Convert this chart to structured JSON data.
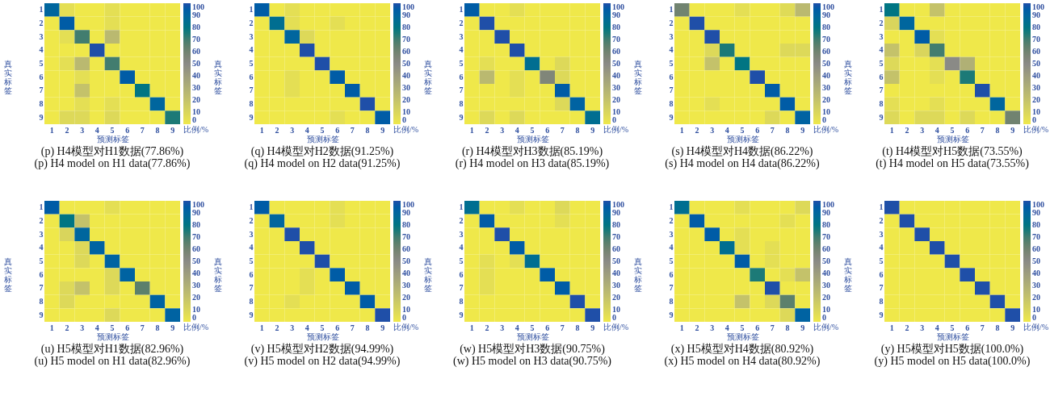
{
  "chart_data": [
    {
      "type": "heatmap",
      "title": "(p) H4模型对H1数据(77.86%)",
      "subtitle": "(p) H4 model on H1 data(77.86%)",
      "xlabel": "预测标签",
      "ylabel": "真实标签",
      "clabel": "比例/%",
      "categories": [
        "1",
        "2",
        "3",
        "4",
        "5",
        "6",
        "7",
        "8",
        "9"
      ],
      "y_categories": [
        "1",
        "2",
        "3",
        "4",
        "5",
        "6",
        "7",
        "8",
        "9"
      ],
      "clim": [
        0,
        100
      ],
      "cticks": [
        0,
        10,
        20,
        30,
        40,
        50,
        60,
        70,
        80,
        90,
        100
      ],
      "cells": [
        [
          90,
          5,
          0,
          0,
          5,
          0,
          0,
          0,
          0
        ],
        [
          0,
          95,
          0,
          0,
          5,
          0,
          0,
          0,
          0
        ],
        [
          0,
          5,
          70,
          0,
          25,
          0,
          0,
          0,
          0
        ],
        [
          0,
          0,
          0,
          100,
          0,
          0,
          0,
          0,
          0
        ],
        [
          0,
          5,
          25,
          0,
          70,
          0,
          0,
          0,
          0
        ],
        [
          0,
          0,
          5,
          0,
          0,
          95,
          0,
          0,
          0
        ],
        [
          0,
          0,
          20,
          0,
          0,
          0,
          80,
          0,
          0
        ],
        [
          0,
          0,
          5,
          0,
          5,
          0,
          0,
          90,
          0
        ],
        [
          0,
          8,
          8,
          0,
          8,
          0,
          0,
          0,
          75
        ]
      ]
    },
    {
      "type": "heatmap",
      "title": "(q) H4模型对H2数据(91.25%)",
      "subtitle": "(q) H4 model on H2 data(91.25%)",
      "xlabel": "预测标签",
      "ylabel": "真实标签",
      "clabel": "比例/%",
      "categories": [
        "1",
        "2",
        "3",
        "4",
        "5",
        "6",
        "7",
        "8",
        "9"
      ],
      "y_categories": [
        "1",
        "2",
        "3",
        "4",
        "5",
        "6",
        "7",
        "8",
        "9"
      ],
      "clim": [
        0,
        100
      ],
      "cticks": [
        0,
        10,
        20,
        30,
        40,
        50,
        60,
        70,
        80,
        90,
        100
      ],
      "cells": [
        [
          95,
          0,
          5,
          0,
          0,
          0,
          0,
          0,
          0
        ],
        [
          0,
          85,
          5,
          0,
          0,
          5,
          0,
          0,
          0
        ],
        [
          0,
          0,
          90,
          8,
          0,
          0,
          0,
          0,
          0
        ],
        [
          0,
          0,
          0,
          100,
          0,
          0,
          0,
          0,
          0
        ],
        [
          0,
          0,
          0,
          0,
          100,
          0,
          0,
          0,
          0
        ],
        [
          0,
          0,
          5,
          0,
          0,
          95,
          0,
          0,
          0
        ],
        [
          0,
          0,
          5,
          0,
          0,
          0,
          95,
          0,
          0
        ],
        [
          0,
          0,
          0,
          0,
          0,
          0,
          0,
          100,
          0
        ],
        [
          0,
          0,
          0,
          0,
          0,
          5,
          0,
          0,
          95
        ]
      ]
    },
    {
      "type": "heatmap",
      "title": "(r) H4模型对H3数据(85.19%)",
      "subtitle": "(r) H4 model on H3 data(85.19%)",
      "xlabel": "预测标签",
      "ylabel": "真实标签",
      "clabel": "比例/%",
      "categories": [
        "1",
        "2",
        "3",
        "4",
        "5",
        "6",
        "7",
        "8",
        "9"
      ],
      "y_categories": [
        "1",
        "2",
        "3",
        "4",
        "5",
        "6",
        "7",
        "8",
        "9"
      ],
      "clim": [
        0,
        100
      ],
      "cticks": [
        0,
        10,
        20,
        30,
        40,
        50,
        60,
        70,
        80,
        90,
        100
      ],
      "cells": [
        [
          95,
          0,
          0,
          5,
          0,
          0,
          0,
          0,
          0
        ],
        [
          0,
          100,
          0,
          0,
          0,
          0,
          0,
          0,
          0
        ],
        [
          0,
          0,
          100,
          0,
          0,
          0,
          0,
          0,
          0
        ],
        [
          0,
          0,
          0,
          100,
          0,
          0,
          0,
          0,
          0
        ],
        [
          0,
          5,
          0,
          0,
          85,
          0,
          8,
          0,
          0
        ],
        [
          0,
          25,
          0,
          5,
          0,
          55,
          8,
          0,
          0
        ],
        [
          0,
          0,
          0,
          5,
          0,
          0,
          95,
          0,
          0
        ],
        [
          0,
          0,
          0,
          0,
          0,
          0,
          8,
          92,
          0
        ],
        [
          0,
          8,
          0,
          8,
          0,
          0,
          0,
          0,
          85
        ]
      ]
    },
    {
      "type": "heatmap",
      "title": "(s) H4模型对H4数据(86.22%)",
      "subtitle": "(s) H4 model on H4 data(86.22%)",
      "xlabel": "预测标签",
      "ylabel": "真实标签",
      "clabel": "比例/%",
      "categories": [
        "1",
        "2",
        "3",
        "4",
        "5",
        "6",
        "7",
        "8",
        "9"
      ],
      "y_categories": [
        "1",
        "2",
        "3",
        "4",
        "5",
        "6",
        "7",
        "8",
        "9"
      ],
      "clim": [
        0,
        100
      ],
      "cticks": [
        0,
        10,
        20,
        30,
        40,
        50,
        60,
        70,
        80,
        90,
        100
      ],
      "cells": [
        [
          60,
          0,
          0,
          0,
          5,
          0,
          0,
          7,
          25
        ],
        [
          0,
          100,
          0,
          0,
          0,
          0,
          0,
          0,
          0
        ],
        [
          0,
          0,
          100,
          0,
          0,
          0,
          0,
          0,
          0
        ],
        [
          0,
          0,
          8,
          75,
          0,
          0,
          0,
          8,
          8
        ],
        [
          0,
          0,
          20,
          0,
          80,
          0,
          0,
          0,
          0
        ],
        [
          0,
          0,
          0,
          0,
          0,
          100,
          0,
          0,
          0
        ],
        [
          0,
          0,
          0,
          0,
          0,
          0,
          95,
          0,
          0
        ],
        [
          0,
          0,
          5,
          0,
          0,
          0,
          0,
          95,
          0
        ],
        [
          0,
          0,
          0,
          0,
          0,
          0,
          8,
          0,
          92
        ]
      ]
    },
    {
      "type": "heatmap",
      "title": "(t) H4模型对H5数据(73.55%)",
      "subtitle": "(t) H4 model on H5 data(73.55%)",
      "xlabel": "预测标签",
      "ylabel": "真实标签",
      "clabel": "比例/%",
      "categories": [
        "1",
        "2",
        "3",
        "4",
        "5",
        "6",
        "7",
        "8",
        "9"
      ],
      "y_categories": [
        "1",
        "2",
        "3",
        "4",
        "5",
        "6",
        "7",
        "8",
        "9"
      ],
      "clim": [
        0,
        100
      ],
      "cticks": [
        0,
        10,
        20,
        30,
        40,
        50,
        60,
        70,
        80,
        90,
        100
      ],
      "cells": [
        [
          80,
          0,
          0,
          20,
          0,
          0,
          0,
          0,
          0
        ],
        [
          10,
          90,
          0,
          0,
          0,
          0,
          0,
          0,
          0
        ],
        [
          0,
          0,
          95,
          5,
          0,
          0,
          0,
          0,
          0
        ],
        [
          20,
          0,
          10,
          70,
          0,
          0,
          0,
          0,
          0
        ],
        [
          8,
          0,
          0,
          5,
          50,
          30,
          0,
          0,
          0
        ],
        [
          20,
          0,
          0,
          5,
          0,
          75,
          0,
          0,
          0
        ],
        [
          0,
          0,
          0,
          0,
          0,
          0,
          100,
          0,
          0
        ],
        [
          5,
          0,
          0,
          5,
          0,
          0,
          0,
          90,
          0
        ],
        [
          8,
          0,
          8,
          8,
          0,
          8,
          0,
          0,
          60
        ]
      ]
    },
    {
      "type": "heatmap",
      "title": "(u) H5模型对H1数据(82.96%)",
      "subtitle": "(u) H5 model on H1 data(82.96%)",
      "xlabel": "预测标签",
      "ylabel": "真实标签",
      "clabel": "比例/%",
      "categories": [
        "1",
        "2",
        "3",
        "4",
        "5",
        "6",
        "7",
        "8",
        "9"
      ],
      "y_categories": [
        "1",
        "2",
        "3",
        "4",
        "5",
        "6",
        "7",
        "8",
        "9"
      ],
      "clim": [
        0,
        100
      ],
      "cticks": [
        0,
        10,
        20,
        30,
        40,
        50,
        60,
        70,
        80,
        90,
        100
      ],
      "cells": [
        [
          95,
          0,
          0,
          0,
          5,
          0,
          0,
          0,
          0
        ],
        [
          0,
          80,
          20,
          0,
          0,
          0,
          0,
          0,
          0
        ],
        [
          0,
          10,
          90,
          0,
          0,
          0,
          0,
          0,
          0
        ],
        [
          0,
          0,
          8,
          92,
          0,
          0,
          0,
          0,
          0
        ],
        [
          0,
          0,
          8,
          0,
          92,
          0,
          0,
          0,
          0
        ],
        [
          0,
          0,
          0,
          0,
          8,
          92,
          0,
          0,
          0
        ],
        [
          0,
          8,
          20,
          0,
          8,
          0,
          65,
          0,
          0
        ],
        [
          0,
          8,
          0,
          0,
          0,
          0,
          0,
          92,
          0
        ],
        [
          0,
          0,
          0,
          0,
          8,
          0,
          0,
          0,
          92
        ]
      ]
    },
    {
      "type": "heatmap",
      "title": "(v) H5模型对H2数据(94.99%)",
      "subtitle": "(v) H5 model on H2 data(94.99%)",
      "xlabel": "预测标签",
      "ylabel": "真实标签",
      "clabel": "比例/%",
      "categories": [
        "1",
        "2",
        "3",
        "4",
        "5",
        "6",
        "7",
        "8",
        "9"
      ],
      "y_categories": [
        "1",
        "2",
        "3",
        "4",
        "5",
        "6",
        "7",
        "8",
        "9"
      ],
      "clim": [
        0,
        100
      ],
      "cticks": [
        0,
        10,
        20,
        30,
        40,
        50,
        60,
        70,
        80,
        90,
        100
      ],
      "cells": [
        [
          95,
          0,
          0,
          0,
          0,
          5,
          0,
          0,
          0
        ],
        [
          0,
          90,
          0,
          0,
          0,
          5,
          0,
          0,
          0
        ],
        [
          0,
          0,
          100,
          0,
          0,
          0,
          0,
          0,
          0
        ],
        [
          0,
          0,
          0,
          100,
          0,
          0,
          0,
          0,
          0
        ],
        [
          0,
          0,
          0,
          0,
          100,
          0,
          0,
          0,
          0
        ],
        [
          0,
          0,
          0,
          5,
          0,
          95,
          0,
          0,
          0
        ],
        [
          0,
          0,
          0,
          5,
          0,
          0,
          95,
          0,
          0
        ],
        [
          0,
          0,
          5,
          0,
          0,
          0,
          0,
          95,
          0
        ],
        [
          0,
          0,
          0,
          0,
          0,
          0,
          0,
          0,
          100
        ]
      ]
    },
    {
      "type": "heatmap",
      "title": "(w) H5模型对H3数据(90.75%)",
      "subtitle": "(w) H5 model on H3 data(90.75%)",
      "xlabel": "预测标签",
      "ylabel": "真实标签",
      "clabel": "比例/%",
      "categories": [
        "1",
        "2",
        "3",
        "4",
        "5",
        "6",
        "7",
        "8",
        "9"
      ],
      "y_categories": [
        "1",
        "2",
        "3",
        "4",
        "5",
        "6",
        "7",
        "8",
        "9"
      ],
      "clim": [
        0,
        100
      ],
      "cticks": [
        0,
        10,
        20,
        30,
        40,
        50,
        60,
        70,
        80,
        90,
        100
      ],
      "cells": [
        [
          85,
          0,
          0,
          5,
          0,
          0,
          8,
          0,
          0
        ],
        [
          0,
          95,
          0,
          0,
          0,
          0,
          5,
          0,
          0
        ],
        [
          0,
          0,
          100,
          0,
          0,
          0,
          0,
          0,
          0
        ],
        [
          0,
          0,
          0,
          95,
          0,
          0,
          0,
          0,
          0
        ],
        [
          0,
          5,
          0,
          5,
          85,
          0,
          0,
          0,
          0
        ],
        [
          0,
          5,
          0,
          0,
          0,
          95,
          0,
          0,
          0
        ],
        [
          0,
          5,
          0,
          0,
          0,
          0,
          95,
          0,
          0
        ],
        [
          0,
          0,
          0,
          0,
          0,
          0,
          0,
          100,
          0
        ],
        [
          0,
          0,
          0,
          0,
          0,
          0,
          0,
          0,
          100
        ]
      ]
    },
    {
      "type": "heatmap",
      "title": "(x) H5模型对H4数据(80.92%)",
      "subtitle": "(x) H5 model on H4 data(80.92%)",
      "xlabel": "预测标签",
      "ylabel": "真实标签",
      "clabel": "比例/%",
      "categories": [
        "1",
        "2",
        "3",
        "4",
        "5",
        "6",
        "7",
        "8",
        "9"
      ],
      "y_categories": [
        "1",
        "2",
        "3",
        "4",
        "5",
        "6",
        "7",
        "8",
        "9"
      ],
      "clim": [
        0,
        100
      ],
      "cticks": [
        0,
        10,
        20,
        30,
        40,
        50,
        60,
        70,
        80,
        90,
        100
      ],
      "cells": [
        [
          85,
          0,
          0,
          0,
          5,
          0,
          0,
          0,
          8
        ],
        [
          0,
          95,
          0,
          0,
          0,
          0,
          0,
          5,
          0
        ],
        [
          0,
          0,
          95,
          0,
          5,
          0,
          0,
          0,
          0
        ],
        [
          0,
          0,
          0,
          85,
          5,
          0,
          5,
          0,
          0
        ],
        [
          0,
          0,
          0,
          0,
          95,
          0,
          5,
          0,
          0
        ],
        [
          0,
          0,
          0,
          0,
          0,
          75,
          0,
          5,
          20
        ],
        [
          0,
          0,
          0,
          0,
          0,
          0,
          100,
          0,
          0
        ],
        [
          0,
          0,
          0,
          0,
          20,
          0,
          8,
          65,
          0
        ],
        [
          0,
          0,
          0,
          0,
          0,
          0,
          0,
          8,
          92
        ]
      ]
    },
    {
      "type": "heatmap",
      "title": "(y) H5模型对H5数据(100.0%)",
      "subtitle": "(y) H5 model on H5 data(100.0%)",
      "xlabel": "预测标签",
      "ylabel": "真实标签",
      "clabel": "比例/%",
      "categories": [
        "1",
        "2",
        "3",
        "4",
        "5",
        "6",
        "7",
        "8",
        "9"
      ],
      "y_categories": [
        "1",
        "2",
        "3",
        "4",
        "5",
        "6",
        "7",
        "8",
        "9"
      ],
      "clim": [
        0,
        100
      ],
      "cticks": [
        0,
        10,
        20,
        30,
        40,
        50,
        60,
        70,
        80,
        90,
        100
      ],
      "cells": [
        [
          100,
          0,
          0,
          0,
          0,
          0,
          0,
          0,
          0
        ],
        [
          0,
          100,
          0,
          0,
          0,
          0,
          0,
          0,
          0
        ],
        [
          0,
          0,
          100,
          0,
          0,
          0,
          0,
          0,
          0
        ],
        [
          0,
          0,
          0,
          100,
          0,
          0,
          0,
          0,
          0
        ],
        [
          0,
          0,
          0,
          0,
          100,
          0,
          0,
          0,
          0
        ],
        [
          0,
          0,
          0,
          0,
          0,
          100,
          0,
          0,
          0
        ],
        [
          0,
          0,
          0,
          0,
          0,
          0,
          100,
          0,
          0
        ],
        [
          0,
          0,
          0,
          0,
          0,
          0,
          0,
          100,
          0
        ],
        [
          0,
          0,
          0,
          0,
          0,
          0,
          0,
          0,
          100
        ]
      ]
    }
  ]
}
